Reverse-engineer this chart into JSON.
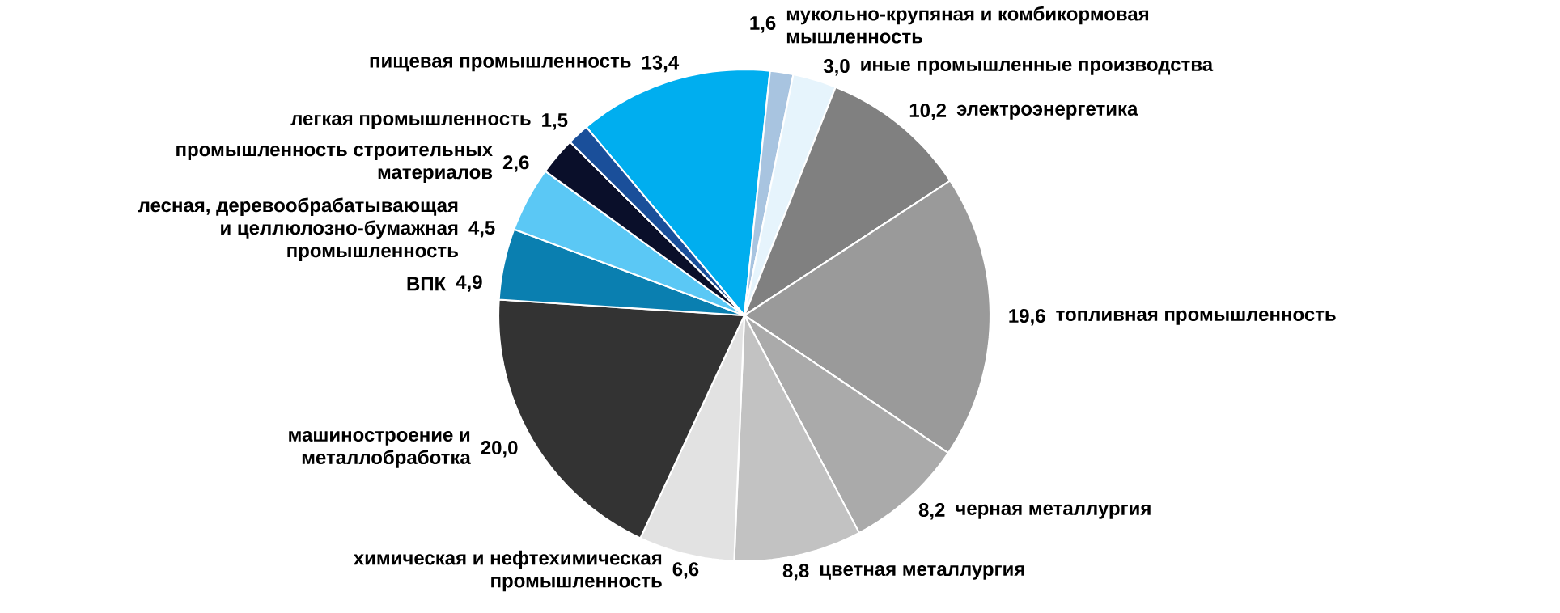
{
  "chart_data": {
    "type": "pie",
    "categories": [
      "пищевая промышленность",
      "мукольно-крупяная и комбикормовая мышленность",
      "иные промышленные производства",
      "электроэнергетика",
      "топливная промышленность",
      "черная металлургия",
      "цветная металлургия",
      "химическая и нефтехимическая промышленность",
      "машиностроение и металлобработка",
      "ВПК",
      "лесная, деревообрабатывающая и целлюлозно-бумажная промышленность",
      "промышленность строительных материалов",
      "легкая промышленность"
    ],
    "values": [
      13.4,
      1.6,
      3.0,
      10.2,
      19.6,
      8.2,
      8.8,
      6.6,
      20.0,
      4.9,
      4.5,
      2.6,
      1.5
    ],
    "value_labels": [
      "13,4",
      "1,6",
      "3,0",
      "10,2",
      "19,6",
      "8,2",
      "8,8",
      "6,6",
      "20,0",
      "4,9",
      "4,5",
      "2,6",
      "1,5"
    ],
    "colors": [
      "#00aeef",
      "#a8c4e0",
      "#e6f4fc",
      "#808080",
      "#9a9a9a",
      "#aaaaaa",
      "#c2c2c2",
      "#e2e2e2",
      "#333333",
      "#0a7fb0",
      "#5bc8f5",
      "#0a0f2a",
      "#1a4f9a"
    ]
  }
}
